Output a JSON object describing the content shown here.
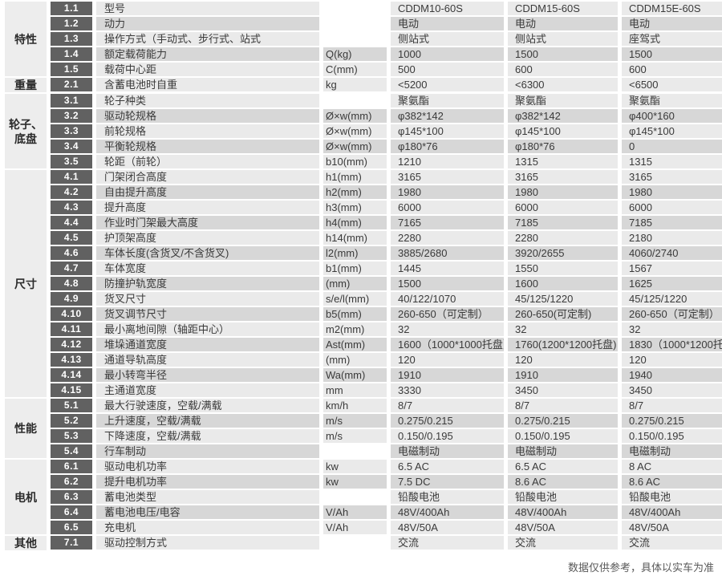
{
  "footer": {
    "note": "数据仅供参考，具体以实车为准"
  },
  "colors": {
    "row_light": "#eaeaea",
    "row_dark": "#d7d7d7",
    "badge_bg": "#616161",
    "category_bg": "#ededed"
  },
  "sections": [
    {
      "category": "特性",
      "rows": [
        {
          "no": "1.1",
          "name": "型号",
          "unit": "",
          "values": [
            "CDDM10-60S",
            "CDDM15-60S",
            "CDDM15E-60S"
          ]
        },
        {
          "no": "1.2",
          "name": "动力",
          "unit": "",
          "values": [
            "电动",
            "电动",
            "电动"
          ]
        },
        {
          "no": "1.3",
          "name": "操作方式（手动式、步行式、站式",
          "unit": "",
          "values": [
            "侧站式",
            "侧站式",
            "座驾式"
          ]
        },
        {
          "no": "1.4",
          "name": "额定载荷能力",
          "unit": "Q(kg)",
          "values": [
            "1000",
            "1500",
            "1500"
          ]
        },
        {
          "no": "1.5",
          "name": "载荷中心距",
          "unit": "C(mm)",
          "values": [
            "500",
            "600",
            "600"
          ]
        }
      ]
    },
    {
      "category": "重量",
      "rows": [
        {
          "no": "2.1",
          "name": "含蓄电池时自重",
          "unit": "kg",
          "values": [
            "<5200",
            "<6300",
            "<6500"
          ]
        }
      ]
    },
    {
      "category": "轮子、底盘",
      "rows": [
        {
          "no": "3.1",
          "name": "轮子种类",
          "unit": "",
          "values": [
            "聚氨酯",
            "聚氨酯",
            "聚氨酯"
          ]
        },
        {
          "no": "3.2",
          "name": "驱动轮规格",
          "unit": "Ø×w(mm)",
          "values": [
            "φ382*142",
            "φ382*142",
            "φ400*160"
          ]
        },
        {
          "no": "3.3",
          "name": "前轮规格",
          "unit": "Ø×w(mm)",
          "values": [
            "φ145*100",
            "φ145*100",
            "φ145*100"
          ]
        },
        {
          "no": "3.4",
          "name": "平衡轮规格",
          "unit": "Ø×w(mm)",
          "values": [
            "φ180*76",
            "φ180*76",
            "0"
          ]
        },
        {
          "no": "3.5",
          "name": "轮距（前轮）",
          "unit": "b10(mm)",
          "values": [
            "1210",
            "1315",
            "1315"
          ]
        }
      ]
    },
    {
      "category": "尺寸",
      "rows": [
        {
          "no": "4.1",
          "name": "门架闭合高度",
          "unit": "h1(mm)",
          "values": [
            "3165",
            "3165",
            "3165"
          ]
        },
        {
          "no": "4.2",
          "name": "自由提升高度",
          "unit": "h2(mm)",
          "values": [
            "1980",
            "1980",
            "1980"
          ]
        },
        {
          "no": "4.3",
          "name": "提升高度",
          "unit": "h3(mm)",
          "values": [
            "6000",
            "6000",
            "6000"
          ]
        },
        {
          "no": "4.4",
          "name": "作业时门架最大高度",
          "unit": "h4(mm)",
          "values": [
            "7165",
            "7185",
            "7185"
          ]
        },
        {
          "no": "4.5",
          "name": "护顶架高度",
          "unit": "h14(mm)",
          "values": [
            "2280",
            "2280",
            "2180"
          ]
        },
        {
          "no": "4.6",
          "name": "车体长度(含货叉/不含货叉)",
          "unit": "l2(mm)",
          "values": [
            "3885/2680",
            "3920/2655",
            "4060/2740"
          ]
        },
        {
          "no": "4.7",
          "name": "车体宽度",
          "unit": "b1(mm)",
          "values": [
            "1445",
            "1550",
            "1567"
          ]
        },
        {
          "no": "4.8",
          "name": "防撞护轨宽度",
          "unit": "(mm)",
          "values": [
            "1500",
            "1600",
            "1625"
          ]
        },
        {
          "no": "4.9",
          "name": "货叉尺寸",
          "unit": "s/e/l(mm)",
          "values": [
            "40/122/1070",
            "45/125/1220",
            "45/125/1220"
          ]
        },
        {
          "no": "4.10",
          "name": "货叉调节尺寸",
          "unit": "b5(mm)",
          "values": [
            "260-650（可定制）",
            "260-650(可定制)",
            "260-650（可定制）"
          ]
        },
        {
          "no": "4.11",
          "name": "最小离地间隙（轴距中心）",
          "unit": "m2(mm)",
          "values": [
            "32",
            "32",
            "32"
          ]
        },
        {
          "no": "4.12",
          "name": "堆垛通道宽度",
          "unit": "Ast(mm)",
          "values": [
            "1600（1000*1000托盘）",
            "1760(1200*1200托盘)",
            "1830（1000*1200托盘）"
          ]
        },
        {
          "no": "4.13",
          "name": "通道导轨高度",
          "unit": "(mm)",
          "values": [
            "120",
            "120",
            "120"
          ]
        },
        {
          "no": "4.14",
          "name": "最小转弯半径",
          "unit": "Wa(mm)",
          "values": [
            "1910",
            "1910",
            "1940"
          ]
        },
        {
          "no": "4.15",
          "name": "主通道宽度",
          "unit": "mm",
          "values": [
            "3330",
            "3450",
            "3450"
          ]
        }
      ]
    },
    {
      "category": "性能",
      "rows": [
        {
          "no": "5.1",
          "name": "最大行驶速度，空载/满载",
          "unit": "km/h",
          "values": [
            "8/7",
            "8/7",
            "8/7"
          ]
        },
        {
          "no": "5.2",
          "name": "上升速度，空载/满载",
          "unit": "m/s",
          "values": [
            "0.275/0.215",
            "0.275/0.215",
            "0.275/0.215"
          ]
        },
        {
          "no": "5.3",
          "name": "下降速度，空载/满载",
          "unit": "m/s",
          "values": [
            "0.150/0.195",
            "0.150/0.195",
            "0.150/0.195"
          ]
        },
        {
          "no": "5.4",
          "name": "行车制动",
          "unit": "",
          "values": [
            "电磁制动",
            "电磁制动",
            "电磁制动"
          ]
        }
      ]
    },
    {
      "category": "电机",
      "rows": [
        {
          "no": "6.1",
          "name": "驱动电机功率",
          "unit": "kw",
          "values": [
            "6.5 AC",
            "6.5 AC",
            "8 AC"
          ]
        },
        {
          "no": "6.2",
          "name": "提升电机功率",
          "unit": "kw",
          "values": [
            "7.5 DC",
            "8.6 AC",
            "8.6 AC"
          ]
        },
        {
          "no": "6.3",
          "name": "蓄电池类型",
          "unit": "",
          "values": [
            "铅酸电池",
            "铅酸电池",
            "铅酸电池"
          ]
        },
        {
          "no": "6.4",
          "name": "蓄电池电压/电容",
          "unit": "V/Ah",
          "values": [
            "48V/400Ah",
            "48V/400Ah",
            "48V/400Ah"
          ]
        },
        {
          "no": "6.5",
          "name": "充电机",
          "unit": "V/Ah",
          "values": [
            "48V/50A",
            "48V/50A",
            "48V/50A"
          ]
        }
      ]
    },
    {
      "category": "其他",
      "rows": [
        {
          "no": "7.1",
          "name": "驱动控制方式",
          "unit": "",
          "values": [
            "交流",
            "交流",
            "交流"
          ]
        }
      ]
    }
  ]
}
